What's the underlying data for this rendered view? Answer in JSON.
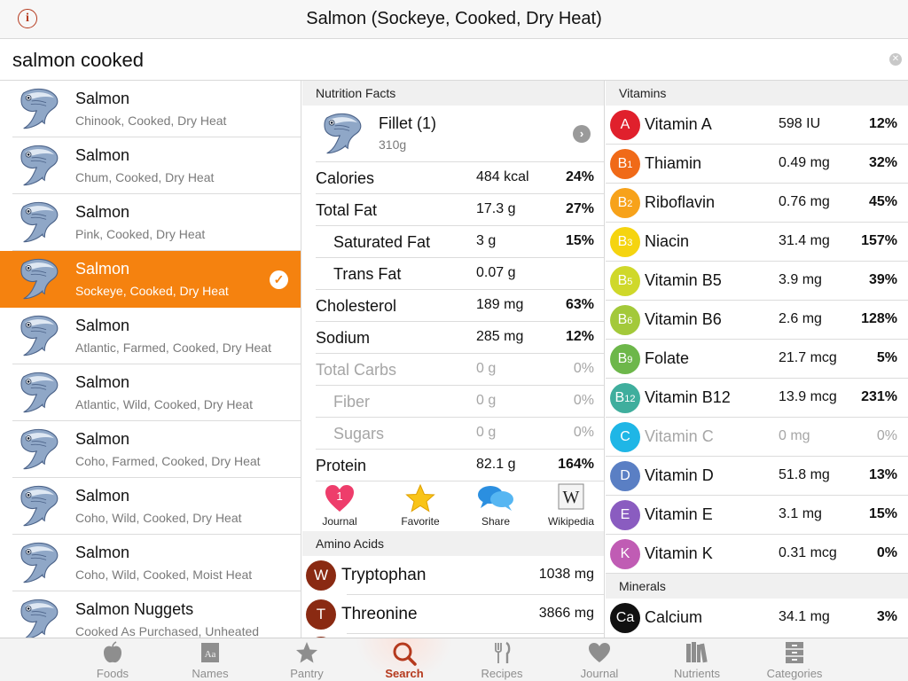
{
  "window": {
    "title": "Salmon (Sockeye, Cooked, Dry Heat)"
  },
  "search": {
    "value": "salmon cooked"
  },
  "food_list": [
    {
      "name": "Salmon",
      "desc": "Chinook, Cooked, Dry Heat",
      "selected": false
    },
    {
      "name": "Salmon",
      "desc": "Chum, Cooked, Dry Heat",
      "selected": false
    },
    {
      "name": "Salmon",
      "desc": "Pink, Cooked, Dry Heat",
      "selected": false
    },
    {
      "name": "Salmon",
      "desc": "Sockeye, Cooked, Dry Heat",
      "selected": true
    },
    {
      "name": "Salmon",
      "desc": "Atlantic, Farmed, Cooked, Dry Heat",
      "selected": false
    },
    {
      "name": "Salmon",
      "desc": "Atlantic, Wild, Cooked, Dry Heat",
      "selected": false
    },
    {
      "name": "Salmon",
      "desc": "Coho, Farmed, Cooked, Dry Heat",
      "selected": false
    },
    {
      "name": "Salmon",
      "desc": "Coho, Wild, Cooked, Dry Heat",
      "selected": false
    },
    {
      "name": "Salmon",
      "desc": "Coho, Wild, Cooked, Moist Heat",
      "selected": false
    },
    {
      "name": "Salmon Nuggets",
      "desc": "Cooked As Purchased, Unheated",
      "selected": false
    }
  ],
  "nutrition": {
    "header": "Nutrition Facts",
    "serving": {
      "label": "Fillet (1)",
      "weight": "310g"
    },
    "rows": [
      {
        "name": "Calories",
        "value": "484 kcal",
        "pct": "24%",
        "sub": false,
        "dim": false
      },
      {
        "name": "Total Fat",
        "value": "17.3 g",
        "pct": "27%",
        "sub": false,
        "dim": false
      },
      {
        "name": "Saturated Fat",
        "value": "3 g",
        "pct": "15%",
        "sub": true,
        "dim": false
      },
      {
        "name": "Trans Fat",
        "value": "0.07 g",
        "pct": "",
        "sub": true,
        "dim": false
      },
      {
        "name": "Cholesterol",
        "value": "189 mg",
        "pct": "63%",
        "sub": false,
        "dim": false
      },
      {
        "name": "Sodium",
        "value": "285 mg",
        "pct": "12%",
        "sub": false,
        "dim": false
      },
      {
        "name": "Total Carbs",
        "value": "0 g",
        "pct": "0%",
        "sub": false,
        "dim": true
      },
      {
        "name": "Fiber",
        "value": "0 g",
        "pct": "0%",
        "sub": true,
        "dim": true
      },
      {
        "name": "Sugars",
        "value": "0 g",
        "pct": "0%",
        "sub": true,
        "dim": true
      },
      {
        "name": "Protein",
        "value": "82.1 g",
        "pct": "164%",
        "sub": false,
        "dim": false
      }
    ],
    "actions": [
      {
        "label": "Journal",
        "icon": "heart-icon",
        "badge": "1"
      },
      {
        "label": "Favorite",
        "icon": "star-icon"
      },
      {
        "label": "Share",
        "icon": "speech-bubbles-icon"
      },
      {
        "label": "Wikipedia",
        "icon": "wikipedia-icon",
        "glyph": "W"
      }
    ]
  },
  "amino": {
    "header": "Amino Acids",
    "rows": [
      {
        "letter": "W",
        "name": "Tryptophan",
        "value": "1038 mg",
        "color": "#8a2a12"
      },
      {
        "letter": "T",
        "name": "Threonine",
        "value": "3866 mg",
        "color": "#8a2a12"
      }
    ]
  },
  "vitamins": {
    "header": "Vitamins",
    "rows": [
      {
        "badge": "A",
        "name": "Vitamin A",
        "value": "598 IU",
        "pct": "12%",
        "color": "#e0202c",
        "dim": false
      },
      {
        "badge": "B1",
        "name": "Thiamin",
        "value": "0.49 mg",
        "pct": "32%",
        "color": "#f06a18",
        "dim": false
      },
      {
        "badge": "B2",
        "name": "Riboflavin",
        "value": "0.76 mg",
        "pct": "45%",
        "color": "#f7a21a",
        "dim": false
      },
      {
        "badge": "B3",
        "name": "Niacin",
        "value": "31.4 mg",
        "pct": "157%",
        "color": "#f5d40f",
        "dim": false
      },
      {
        "badge": "B5",
        "name": "Vitamin B5",
        "value": "3.9 mg",
        "pct": "39%",
        "color": "#cfd82a",
        "dim": false
      },
      {
        "badge": "B6",
        "name": "Vitamin B6",
        "value": "2.6 mg",
        "pct": "128%",
        "color": "#a3c93a",
        "dim": false
      },
      {
        "badge": "B9",
        "name": "Folate",
        "value": "21.7 mcg",
        "pct": "5%",
        "color": "#6db74a",
        "dim": false
      },
      {
        "badge": "B12",
        "name": "Vitamin B12",
        "value": "13.9 mcg",
        "pct": "231%",
        "color": "#3fae9d",
        "dim": false
      },
      {
        "badge": "C",
        "name": "Vitamin C",
        "value": "0 mg",
        "pct": "0%",
        "color": "#1fb6e6",
        "dim": true
      },
      {
        "badge": "D",
        "name": "Vitamin D",
        "value": "51.8 mg",
        "pct": "13%",
        "color": "#5a7fc4",
        "dim": false
      },
      {
        "badge": "E",
        "name": "Vitamin E",
        "value": "3.1 mg",
        "pct": "15%",
        "color": "#8a5cc0",
        "dim": false
      },
      {
        "badge": "K",
        "name": "Vitamin K",
        "value": "0.31 mcg",
        "pct": "0%",
        "color": "#c05cb4",
        "dim": false
      }
    ]
  },
  "minerals": {
    "header": "Minerals",
    "rows": [
      {
        "badge": "Ca",
        "name": "Calcium",
        "value": "34.1 mg",
        "pct": "3%",
        "color": "#111111"
      }
    ]
  },
  "tabs": [
    {
      "label": "Foods",
      "icon": "apple-icon",
      "active": false
    },
    {
      "label": "Names",
      "icon": "dictionary-icon",
      "active": false
    },
    {
      "label": "Pantry",
      "icon": "star-icon",
      "active": false
    },
    {
      "label": "Search",
      "icon": "search-icon",
      "active": true
    },
    {
      "label": "Recipes",
      "icon": "fork-knife-icon",
      "active": false
    },
    {
      "label": "Journal",
      "icon": "heart-icon",
      "active": false
    },
    {
      "label": "Nutrients",
      "icon": "books-icon",
      "active": false
    },
    {
      "label": "Categories",
      "icon": "cabinet-icon",
      "active": false
    }
  ],
  "colors": {
    "accent": "#f5820f",
    "brand": "#b5391d",
    "amino": "#8a2a12"
  }
}
